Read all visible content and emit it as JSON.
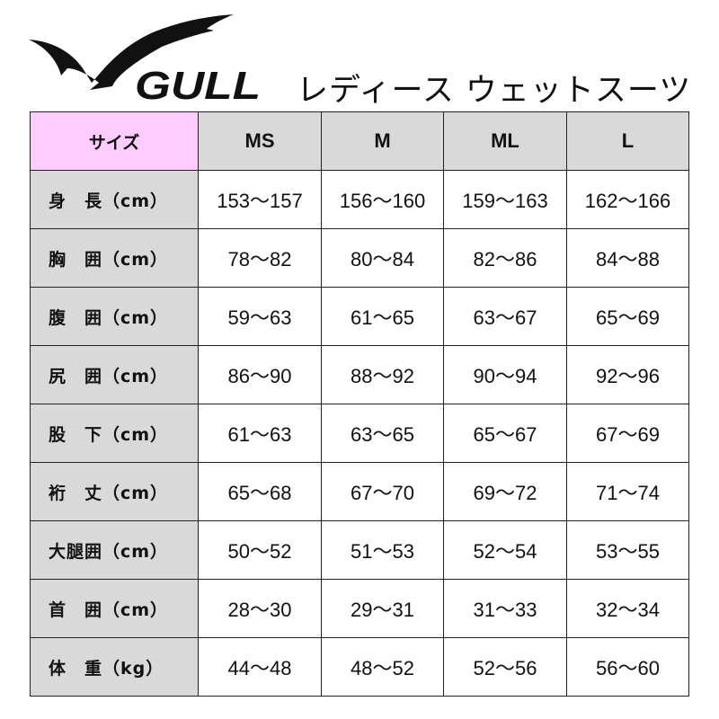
{
  "brand": {
    "logo_text": "GULL"
  },
  "title": "レディース ウェットスーツ",
  "colors": {
    "corner": "#ffccff",
    "header": "#d9d9d9",
    "border": "#222222"
  },
  "table": {
    "corner": "サイズ",
    "columns": [
      "MS",
      "M",
      "ML",
      "L"
    ],
    "rows": [
      {
        "label": "身　長（cm）",
        "values": [
          "153〜157",
          "156〜160",
          "159〜163",
          "162〜166"
        ]
      },
      {
        "label": "胸　囲（cm）",
        "values": [
          "78〜82",
          "80〜84",
          "82〜86",
          "84〜88"
        ]
      },
      {
        "label": "腹　囲（cm）",
        "values": [
          "59〜63",
          "61〜65",
          "63〜67",
          "65〜69"
        ]
      },
      {
        "label": "尻　囲（cm）",
        "values": [
          "86〜90",
          "88〜92",
          "90〜94",
          "92〜96"
        ]
      },
      {
        "label": "股　下（cm）",
        "values": [
          "61〜63",
          "63〜65",
          "65〜67",
          "67〜69"
        ]
      },
      {
        "label": "裄　丈（cm）",
        "values": [
          "65〜68",
          "67〜70",
          "69〜72",
          "71〜74"
        ]
      },
      {
        "label": "大腿囲（cm）",
        "values": [
          "50〜52",
          "51〜53",
          "52〜54",
          "53〜55"
        ]
      },
      {
        "label": "首　囲（cm）",
        "values": [
          "28〜30",
          "29〜31",
          "31〜33",
          "32〜34"
        ]
      },
      {
        "label": "体　重（kg）",
        "values": [
          "44〜48",
          "48〜52",
          "52〜56",
          "56〜60"
        ]
      }
    ]
  }
}
